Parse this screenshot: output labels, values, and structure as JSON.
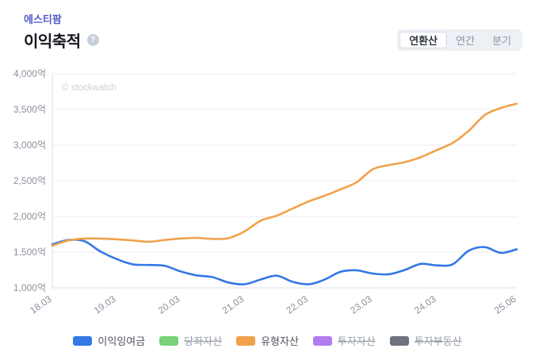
{
  "header": {
    "brand": "에스티팜",
    "title": "이익축적",
    "help_icon": "?"
  },
  "tabs": [
    {
      "label": "연환산",
      "selected": true
    },
    {
      "label": "연간",
      "selected": false
    },
    {
      "label": "분기",
      "selected": false
    }
  ],
  "watermark": "© stockwatch",
  "colors": {
    "retained_earnings": "#3378e5",
    "quick_assets": "#79d279",
    "tangible_assets": "#f0a24b",
    "investment_assets": "#b27cee",
    "investment_property": "#6f7080",
    "grid": "#eceef1",
    "axis": "#dfe2e7",
    "tick_text": "#8c919c"
  },
  "legend": [
    {
      "label": "이익잉여금",
      "color": "#3378e5",
      "disabled": false
    },
    {
      "label": "당좌자산",
      "color": "#79d279",
      "disabled": true
    },
    {
      "label": "유형자산",
      "color": "#f0a24b",
      "disabled": false
    },
    {
      "label": "투자자산",
      "color": "#b27cee",
      "disabled": true
    },
    {
      "label": "투자부동산",
      "color": "#6f7080",
      "disabled": true
    }
  ],
  "chart_data": {
    "type": "line",
    "title": "이익축적",
    "unit": "억",
    "ylim": [
      1000,
      4000
    ],
    "y_tick_labels": [
      "1,000억",
      "1,500억",
      "2,000억",
      "2,500억",
      "3,000억",
      "3,500억",
      "4,000억"
    ],
    "x": [
      "18.03",
      "18.06",
      "18.09",
      "18.12",
      "19.03",
      "19.06",
      "19.09",
      "19.12",
      "20.03",
      "20.06",
      "20.09",
      "20.12",
      "21.03",
      "21.06",
      "21.09",
      "21.12",
      "22.03",
      "22.06",
      "22.09",
      "22.12",
      "23.03",
      "23.06",
      "23.09",
      "23.12",
      "24.03",
      "24.06",
      "24.09",
      "24.12",
      "25.03",
      "25.06"
    ],
    "x_axis_ticks": [
      "18.03",
      "19.03",
      "20.03",
      "21.03",
      "22.03",
      "23.03",
      "24.03",
      "25.06"
    ],
    "grid": true,
    "legend_position": "bottom",
    "series": [
      {
        "name": "이익잉여금",
        "color": "#3378e5",
        "values": [
          1610,
          1670,
          1655,
          1510,
          1405,
          1330,
          1320,
          1310,
          1230,
          1175,
          1150,
          1075,
          1050,
          1115,
          1170,
          1085,
          1050,
          1115,
          1225,
          1245,
          1200,
          1190,
          1250,
          1335,
          1315,
          1330,
          1520,
          1570,
          1490,
          1540
        ]
      },
      {
        "name": "유형자산",
        "color": "#f0a24b",
        "values": [
          1590,
          1665,
          1690,
          1690,
          1680,
          1665,
          1645,
          1670,
          1690,
          1700,
          1685,
          1695,
          1790,
          1940,
          2010,
          2110,
          2210,
          2290,
          2380,
          2480,
          2660,
          2720,
          2760,
          2830,
          2930,
          3030,
          3200,
          3420,
          3520,
          3580
        ]
      }
    ],
    "hidden_series": [
      "당좌자산",
      "투자자산",
      "투자부동산"
    ]
  }
}
